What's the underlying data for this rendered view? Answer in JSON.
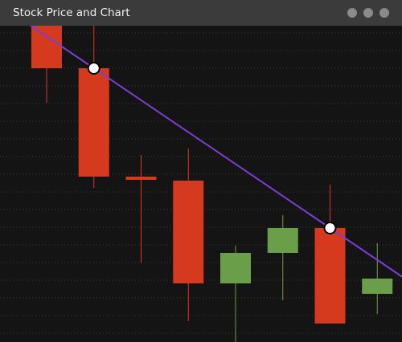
{
  "window": {
    "title": "Stock Price and Chart"
  },
  "chart_data": {
    "type": "candlestick",
    "ylim": [
      0,
      394
    ],
    "grid": true,
    "up_color": "#6a9e48",
    "down_color": "#d63a1e",
    "open": [
      406,
      341,
      206,
      201,
      73,
      111,
      142,
      60
    ],
    "high": [
      416,
      400,
      233,
      241,
      120,
      158,
      196,
      123
    ],
    "low": [
      298,
      192,
      99,
      26,
      -5,
      52,
      23,
      35
    ],
    "close": [
      341,
      206,
      202,
      73,
      111,
      142,
      23,
      79
    ],
    "trendline": {
      "color": "#7b3fd1",
      "index": [
        1,
        6
      ],
      "values": [
        341,
        142
      ]
    }
  }
}
